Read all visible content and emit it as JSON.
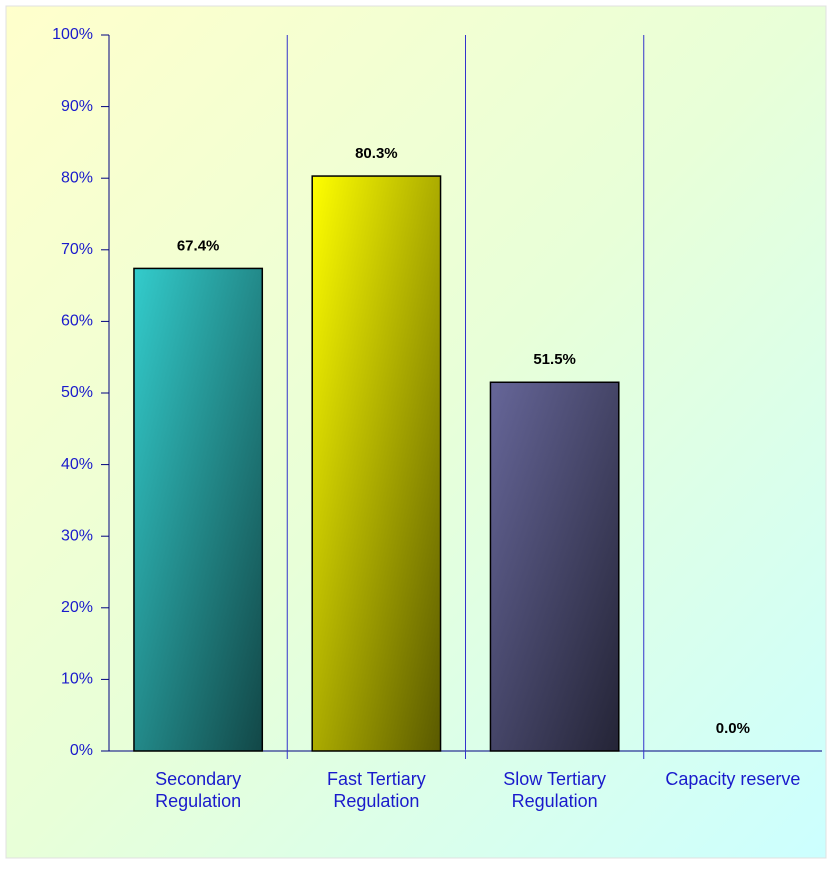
{
  "chart_data": {
    "type": "bar",
    "categories": [
      "Secondary Regulation",
      "Fast Tertiary Regulation",
      "Slow Tertiary Regulation",
      "Capacity reserve"
    ],
    "values": [
      67.4,
      80.3,
      51.5,
      0.0
    ],
    "value_labels": [
      "67.4%",
      "80.3%",
      "51.5%",
      "0.0%"
    ],
    "colors": [
      "#33cccc",
      "#ffff00",
      "#666699",
      "#999999"
    ],
    "ylim": [
      0,
      100
    ],
    "yticks": [
      {
        "value": 0,
        "label": "0%"
      },
      {
        "value": 10,
        "label": "10%"
      },
      {
        "value": 20,
        "label": "20%"
      },
      {
        "value": 30,
        "label": "30%"
      },
      {
        "value": 40,
        "label": "40%"
      },
      {
        "value": 50,
        "label": "50%"
      },
      {
        "value": 60,
        "label": "60%"
      },
      {
        "value": 70,
        "label": "70%"
      },
      {
        "value": 80,
        "label": "80%"
      },
      {
        "value": 90,
        "label": "90%"
      },
      {
        "value": 100,
        "label": "100%"
      }
    ],
    "category_dividers": true
  }
}
